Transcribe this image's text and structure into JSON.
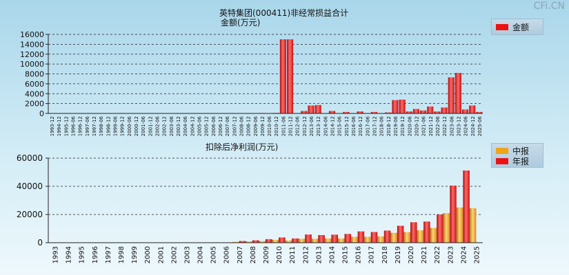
{
  "watermark": "CFi.CN",
  "chart_data": [
    {
      "type": "bar",
      "title": "英特集团(000411)非经常损益合计",
      "subtitle": "金额(万元)",
      "legend": [
        {
          "name": "金额",
          "color": "#ee1111"
        }
      ],
      "ylim": [
        0,
        16000
      ],
      "yticks": [
        0,
        2000,
        4000,
        6000,
        8000,
        10000,
        12000,
        14000,
        16000
      ],
      "categories": [
        "1993-12",
        "1994-12",
        "1995-12",
        "1996-06",
        "1996-12",
        "1997-06",
        "1997-12",
        "1998-06",
        "1998-12",
        "1999-06",
        "1999-12",
        "2000-06",
        "2000-12",
        "2001-06",
        "2001-12",
        "2002-06",
        "2002-12",
        "2003-06",
        "2003-12",
        "2004-06",
        "2004-12",
        "2005-06",
        "2005-12",
        "2006-06",
        "2006-12",
        "2007-06",
        "2007-12",
        "2008-06",
        "2008-12",
        "2009-06",
        "2009-12",
        "2010-06",
        "2010-12",
        "2011-06",
        "2011-12",
        "2012-06",
        "2012-12",
        "2013-06",
        "2013-12",
        "2014-06",
        "2014-12",
        "2015-06",
        "2015-12",
        "2016-06",
        "2016-12",
        "2017-06",
        "2017-12",
        "2018-06",
        "2018-12",
        "2019-06",
        "2019-12",
        "2020-06",
        "2020-12",
        "2021-06",
        "2021-12",
        "2022-06",
        "2022-12",
        "2023-06",
        "2023-12",
        "2024-06",
        "2024-12",
        "2025-06"
      ],
      "values": [
        0,
        0,
        0,
        0,
        0,
        0,
        0,
        0,
        0,
        0,
        0,
        0,
        0,
        0,
        0,
        0,
        0,
        0,
        0,
        0,
        0,
        0,
        0,
        0,
        0,
        0,
        60,
        40,
        80,
        60,
        80,
        40,
        100,
        15000,
        15000,
        0,
        500,
        1600,
        1700,
        0,
        500,
        0,
        300,
        0,
        400,
        0,
        300,
        0,
        200,
        2700,
        2800,
        400,
        900,
        600,
        1400,
        400,
        1200,
        7300,
        8200,
        800,
        1600,
        300
      ]
    },
    {
      "type": "bar",
      "title": "扣除后净利润(万元)",
      "legend": [
        {
          "name": "中报",
          "color": "#f0a418"
        },
        {
          "name": "年报",
          "color": "#ee1111"
        }
      ],
      "ylim": [
        0,
        60000
      ],
      "yticks": [
        0,
        20000,
        40000,
        60000
      ],
      "categories": [
        "1993",
        "1994",
        "1995",
        "1996",
        "1997",
        "1998",
        "1999",
        "2000",
        "2001",
        "2002",
        "2003",
        "2004",
        "2005",
        "2006",
        "2007",
        "2008",
        "2009",
        "2010",
        "2011",
        "2012",
        "2013",
        "2014",
        "2015",
        "2016",
        "2017",
        "2018",
        "2019",
        "2020",
        "2021",
        "2022",
        "2023",
        "2024",
        "2025"
      ],
      "series": [
        {
          "name": "中报",
          "values": [
            0,
            0,
            0,
            0,
            0,
            0,
            0,
            0,
            0,
            0,
            0,
            0,
            0,
            0,
            600,
            900,
            1200,
            2000,
            1600,
            2800,
            2800,
            3000,
            3000,
            4200,
            4200,
            4500,
            7000,
            7500,
            8800,
            10500,
            21000,
            25000,
            24500
          ]
        },
        {
          "name": "年报",
          "values": [
            0,
            0,
            0,
            0,
            0,
            0,
            0,
            0,
            0,
            0,
            0,
            0,
            0,
            0,
            1200,
            1700,
            2500,
            3700,
            3000,
            5800,
            5400,
            5700,
            6200,
            8000,
            7600,
            8600,
            12000,
            14500,
            15000,
            20000,
            40500,
            51200,
            null
          ]
        }
      ]
    }
  ]
}
